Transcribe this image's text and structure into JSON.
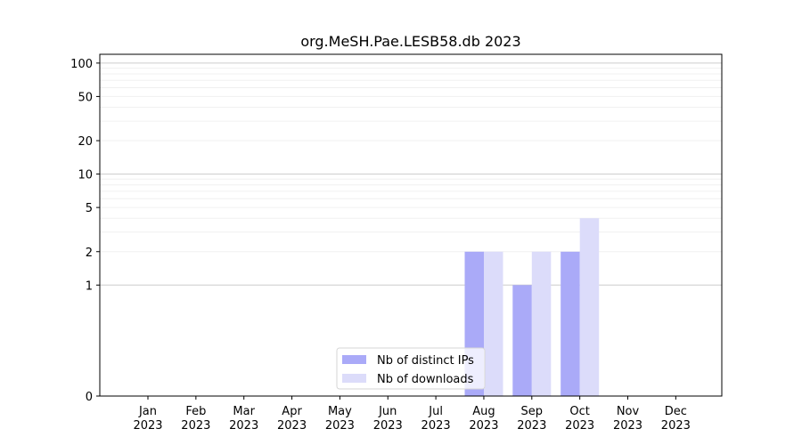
{
  "chart_data": {
    "type": "bar",
    "title": "org.MeSH.Pae.LESB58.db 2023",
    "xlabel": "",
    "ylabel": "",
    "y_scale": "symlog",
    "ylim": [
      0,
      120
    ],
    "y_ticks": [
      0,
      1,
      2,
      5,
      10,
      20,
      50,
      100
    ],
    "y_tick_labels": [
      "0",
      "1",
      "2",
      "5",
      "10",
      "20",
      "50",
      "100"
    ],
    "categories": [
      "Jan\n2023",
      "Feb\n2023",
      "Mar\n2023",
      "Apr\n2023",
      "May\n2023",
      "Jun\n2023",
      "Jul\n2023",
      "Aug\n2023",
      "Sep\n2023",
      "Oct\n2023",
      "Nov\n2023",
      "Dec\n2023"
    ],
    "series": [
      {
        "name": "Nb of distinct IPs",
        "color": "#aaaaf8",
        "values": [
          0,
          0,
          0,
          0,
          0,
          0,
          0,
          2,
          1,
          2,
          0,
          0
        ]
      },
      {
        "name": "Nb of downloads",
        "color": "#dcdcfa",
        "values": [
          0,
          0,
          0,
          0,
          0,
          0,
          0,
          2,
          2,
          4,
          0,
          0
        ]
      }
    ],
    "grid": true,
    "legend_position": "bottom-center"
  }
}
